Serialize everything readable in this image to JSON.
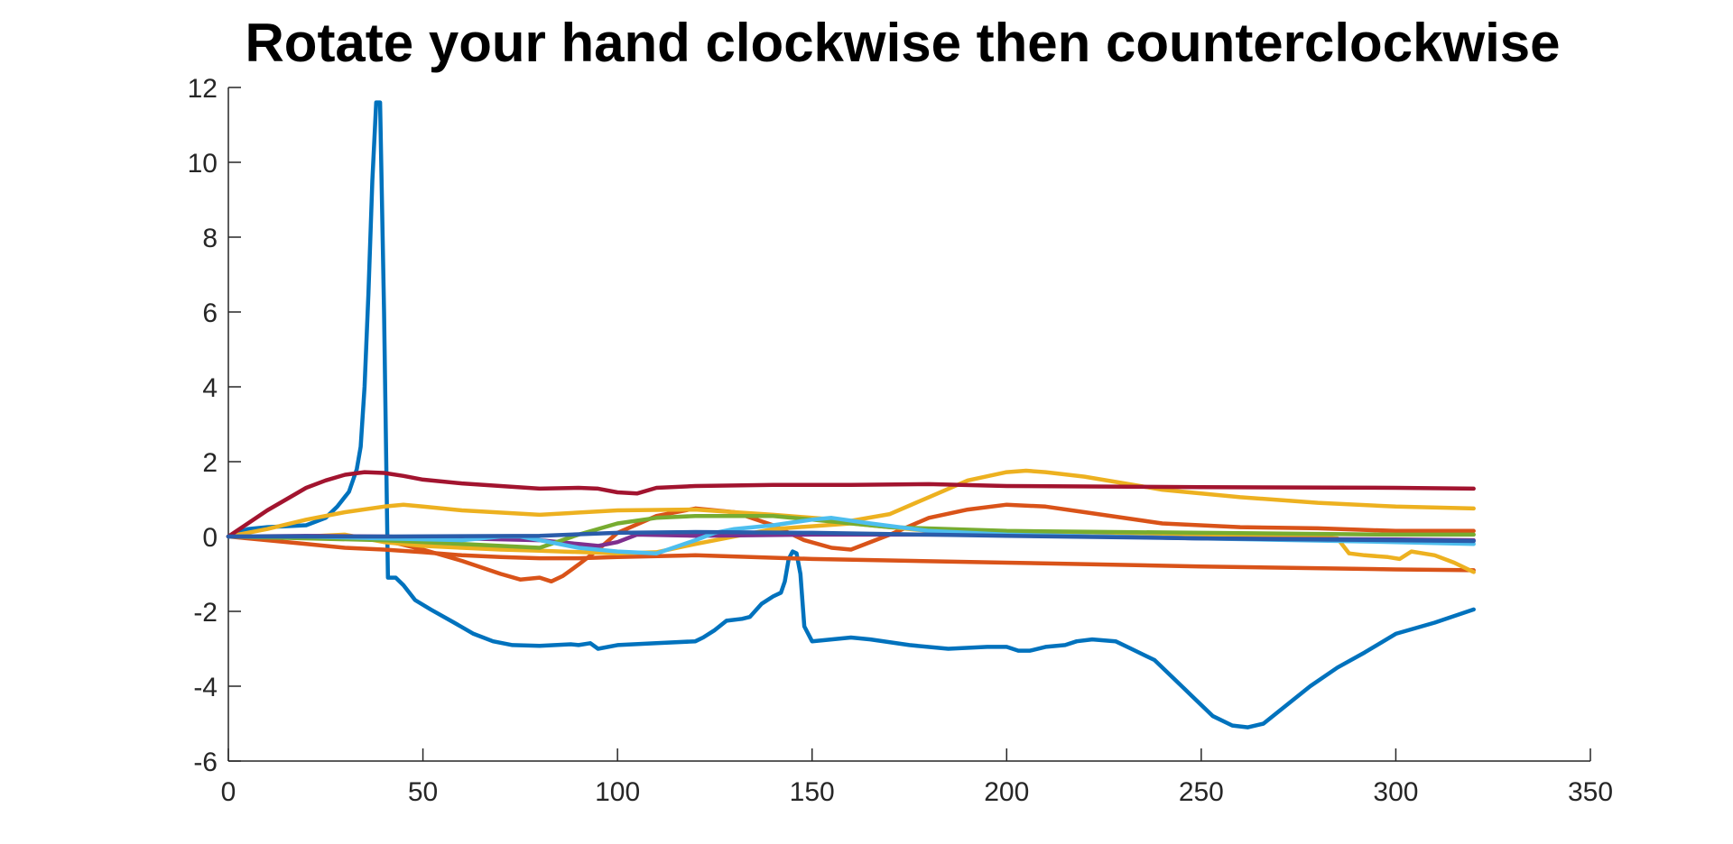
{
  "chart_data": {
    "type": "line",
    "title": "Rotate your hand clockwise then counterclockwise",
    "xlabel": "",
    "ylabel": "",
    "xlim": [
      0,
      350
    ],
    "ylim": [
      -6,
      12
    ],
    "xticks": [
      "0",
      "50",
      "100",
      "150",
      "200",
      "250",
      "300",
      "350"
    ],
    "yticks": [
      "-6",
      "-4",
      "-2",
      "0",
      "2",
      "4",
      "6",
      "8",
      "10",
      "12"
    ],
    "grid": false,
    "legend": "none",
    "series": [
      {
        "color": "#0072BD",
        "x": [
          0,
          5,
          10,
          20,
          25,
          28,
          31,
          33,
          34,
          35,
          36,
          37,
          38,
          39,
          40,
          41,
          43,
          45,
          48,
          52,
          58,
          63,
          68,
          73,
          80,
          88,
          90,
          93,
          95,
          100,
          110,
          120,
          122,
          125,
          128,
          132,
          134,
          137,
          140,
          142,
          143,
          144,
          145,
          146,
          147,
          148,
          150,
          155,
          160,
          165,
          175,
          185,
          195,
          200,
          203,
          206,
          210,
          215,
          218,
          222,
          228,
          232,
          238,
          243,
          248,
          253,
          258,
          262,
          266,
          272,
          278,
          285,
          292,
          300,
          310,
          320
        ],
        "y": [
          0,
          0.2,
          0.25,
          0.3,
          0.5,
          0.8,
          1.2,
          1.8,
          2.4,
          4.0,
          6.5,
          9.5,
          11.6,
          11.6,
          6.0,
          -1.1,
          -1.1,
          -1.3,
          -1.7,
          -1.95,
          -2.3,
          -2.6,
          -2.8,
          -2.9,
          -2.92,
          -2.88,
          -2.9,
          -2.85,
          -3.0,
          -2.9,
          -2.85,
          -2.8,
          -2.7,
          -2.5,
          -2.25,
          -2.2,
          -2.15,
          -1.8,
          -1.6,
          -1.5,
          -1.2,
          -0.6,
          -0.4,
          -0.45,
          -1.0,
          -2.4,
          -2.8,
          -2.75,
          -2.7,
          -2.75,
          -2.9,
          -3.0,
          -2.95,
          -2.95,
          -3.05,
          -3.05,
          -2.95,
          -2.9,
          -2.8,
          -2.75,
          -2.8,
          -3.0,
          -3.3,
          -3.8,
          -4.3,
          -4.8,
          -5.05,
          -5.1,
          -5.0,
          -4.5,
          -4.0,
          -3.5,
          -3.1,
          -2.6,
          -2.3,
          -1.95
        ]
      },
      {
        "color": "#D95319",
        "x": [
          0,
          10,
          20,
          30,
          40,
          50,
          60,
          70,
          80,
          90,
          100,
          120,
          150,
          200,
          250,
          300,
          320
        ],
        "y": [
          0,
          -0.1,
          -0.2,
          -0.3,
          -0.35,
          -0.42,
          -0.5,
          -0.55,
          -0.58,
          -0.58,
          -0.55,
          -0.5,
          -0.6,
          -0.7,
          -0.8,
          -0.88,
          -0.9
        ]
      },
      {
        "color": "#D95319",
        "x": [
          0,
          20,
          40,
          50,
          60,
          70,
          75,
          80,
          83,
          86,
          90,
          95,
          100,
          110,
          120,
          130,
          140,
          148,
          155,
          160,
          170,
          180,
          190,
          200,
          210,
          220,
          240,
          260,
          280,
          300,
          320
        ],
        "y": [
          0,
          0,
          -0.1,
          -0.35,
          -0.65,
          -1.0,
          -1.15,
          -1.1,
          -1.2,
          -1.05,
          -0.75,
          -0.35,
          0.1,
          0.55,
          0.75,
          0.65,
          0.3,
          -0.1,
          -0.3,
          -0.35,
          0.05,
          0.5,
          0.72,
          0.85,
          0.8,
          0.65,
          0.35,
          0.25,
          0.22,
          0.15,
          0.15
        ]
      },
      {
        "color": "#EDB120",
        "x": [
          0,
          10,
          20,
          30,
          40,
          45,
          50,
          60,
          80,
          100,
          120,
          140,
          160,
          170,
          180,
          190,
          200,
          205,
          210,
          220,
          240,
          260,
          280,
          300,
          320
        ],
        "y": [
          0,
          0.2,
          0.45,
          0.65,
          0.8,
          0.85,
          0.8,
          0.7,
          0.58,
          0.7,
          0.72,
          0.58,
          0.42,
          0.6,
          1.05,
          1.5,
          1.72,
          1.76,
          1.72,
          1.6,
          1.25,
          1.05,
          0.9,
          0.8,
          0.75
        ]
      },
      {
        "color": "#EDB120",
        "x": [
          0,
          20,
          30,
          40,
          50,
          60,
          70,
          80,
          100,
          110,
          120,
          140,
          160,
          180,
          200,
          250,
          280,
          285,
          288,
          292,
          298,
          301,
          304,
          310,
          315,
          320
        ],
        "y": [
          0,
          0,
          0.05,
          -0.15,
          -0.25,
          -0.3,
          -0.35,
          -0.38,
          -0.45,
          -0.42,
          -0.2,
          0.2,
          0.35,
          0.15,
          0.05,
          0,
          -0.02,
          -0.05,
          -0.45,
          -0.5,
          -0.55,
          -0.6,
          -0.4,
          -0.5,
          -0.7,
          -0.95
        ]
      },
      {
        "color": "#7E2F8E",
        "x": [
          0,
          20,
          40,
          60,
          80,
          90,
          95,
          100,
          105,
          120,
          150,
          200,
          250,
          300,
          320
        ],
        "y": [
          0,
          0.02,
          0,
          -0.05,
          -0.1,
          -0.2,
          -0.25,
          -0.15,
          0.05,
          0.02,
          0.05,
          0.05,
          -0.05,
          -0.08,
          -0.1
        ]
      },
      {
        "color": "#77AC30",
        "x": [
          0,
          40,
          60,
          80,
          90,
          100,
          110,
          120,
          130,
          140,
          150,
          170,
          200,
          250,
          300,
          320
        ],
        "y": [
          0,
          -0.1,
          -0.2,
          -0.3,
          0.05,
          0.35,
          0.5,
          0.55,
          0.55,
          0.55,
          0.45,
          0.25,
          0.15,
          0.1,
          0.05,
          0.05
        ]
      },
      {
        "color": "#4DBEEE",
        "x": [
          0,
          20,
          40,
          60,
          70,
          75,
          80,
          90,
          100,
          110,
          120,
          125,
          130,
          140,
          150,
          155,
          165,
          180,
          200,
          250,
          300,
          320
        ],
        "y": [
          0,
          0,
          -0.05,
          -0.1,
          0,
          0,
          -0.1,
          -0.3,
          -0.4,
          -0.45,
          -0.1,
          0.1,
          0.2,
          0.3,
          0.45,
          0.5,
          0.35,
          0.15,
          0.05,
          -0.05,
          -0.15,
          -0.2
        ]
      },
      {
        "color": "#A2142F",
        "x": [
          0,
          5,
          10,
          15,
          20,
          25,
          30,
          35,
          40,
          45,
          50,
          60,
          70,
          80,
          90,
          95,
          100,
          105,
          110,
          120,
          140,
          160,
          180,
          200,
          250,
          300,
          320
        ],
        "y": [
          0,
          0.35,
          0.7,
          1.0,
          1.3,
          1.5,
          1.65,
          1.72,
          1.7,
          1.62,
          1.52,
          1.42,
          1.35,
          1.28,
          1.3,
          1.28,
          1.18,
          1.15,
          1.3,
          1.35,
          1.38,
          1.38,
          1.4,
          1.35,
          1.32,
          1.3,
          1.28
        ]
      },
      {
        "color": "#2A5CAA",
        "x": [
          0,
          40,
          80,
          100,
          120,
          150,
          180,
          200,
          250,
          300,
          320
        ],
        "y": [
          0,
          0,
          0.02,
          0.1,
          0.12,
          0.1,
          0.05,
          0.02,
          -0.05,
          -0.1,
          -0.12
        ]
      }
    ]
  }
}
